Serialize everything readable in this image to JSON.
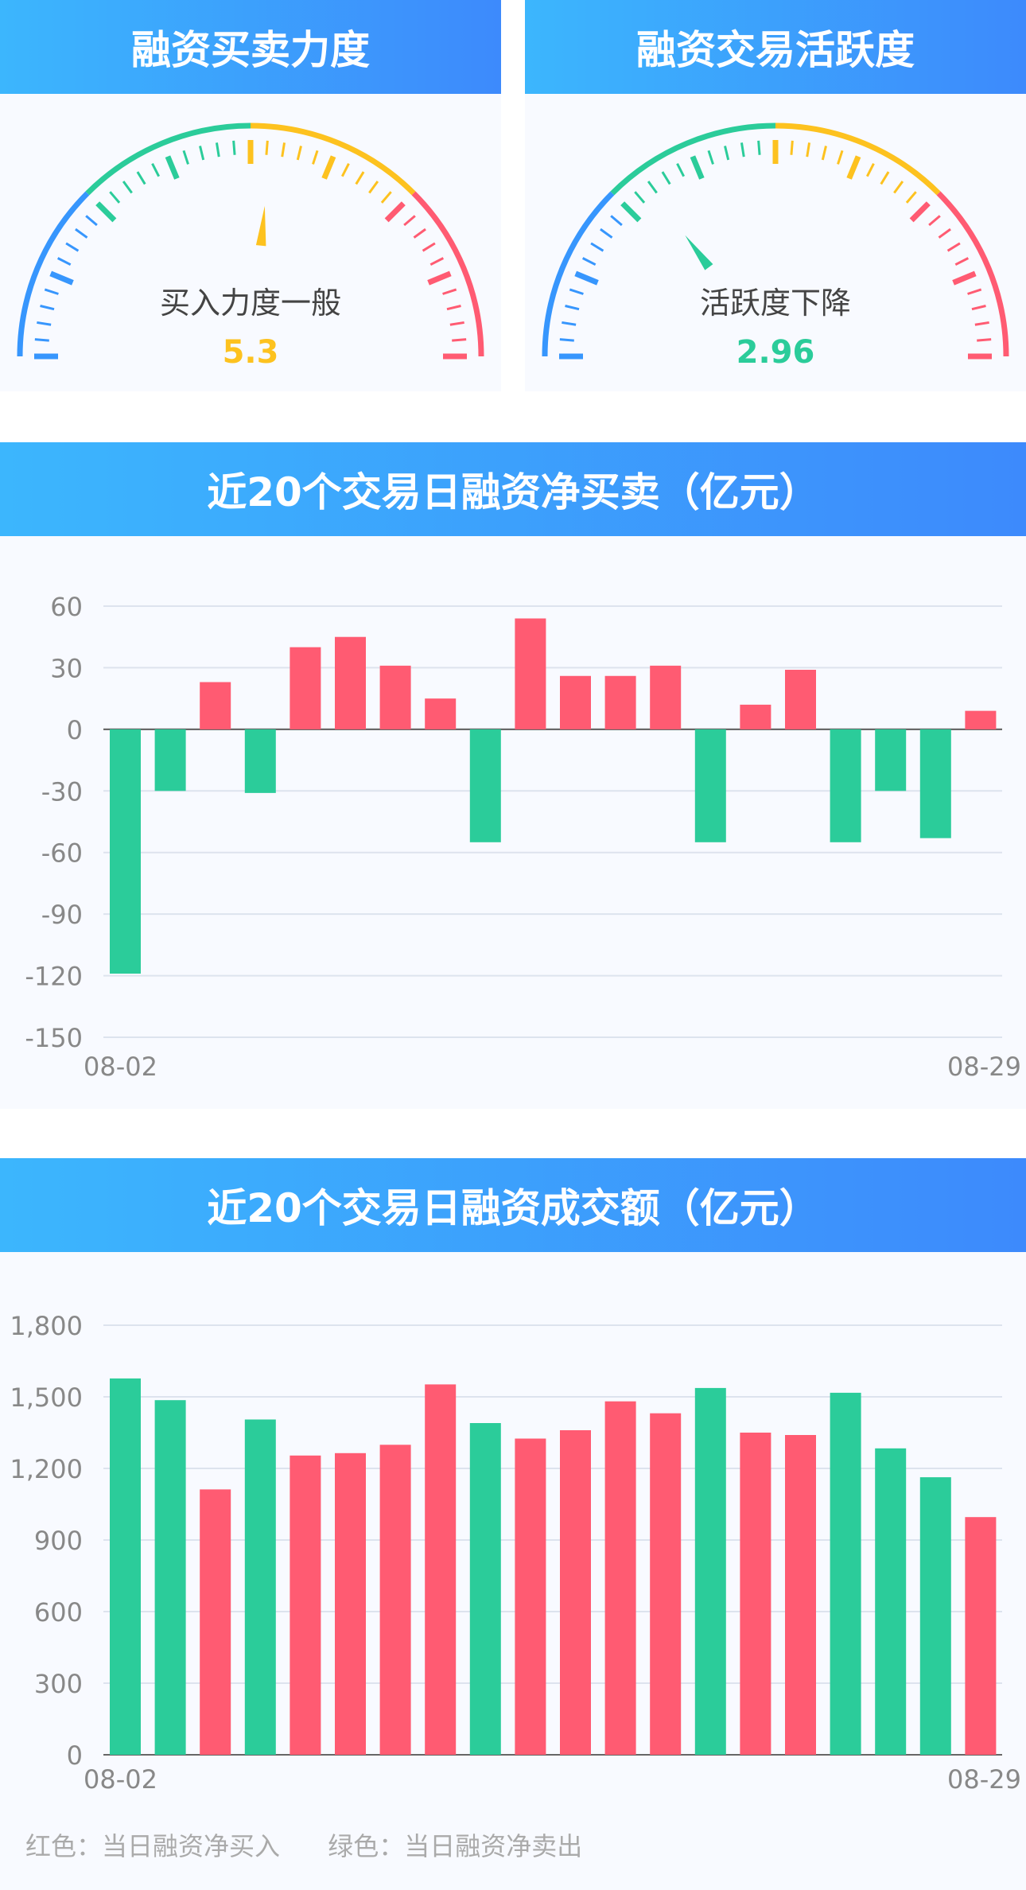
{
  "gauges": [
    {
      "title": "融资买卖力度",
      "label": "买入力度一般",
      "value": "5.3",
      "value_color": "#fdc21f",
      "min": 0,
      "max": 10
    },
    {
      "title": "融资交易活跃度",
      "label": "活跃度下降",
      "value": "2.96",
      "value_color": "#2bcc9a",
      "min": 0,
      "max": 10
    }
  ],
  "colors": {
    "red": "#ff5b72",
    "green": "#2bcc9a",
    "blue": "#3796fd",
    "yellow": "#fdc21f"
  },
  "legend": {
    "red": "红色：当日融资净买入",
    "green": "绿色：当日融资净卖出"
  },
  "chart_data": [
    {
      "type": "bar",
      "title": "近20个交易日融资净买卖（亿元）",
      "x_first": "08-02",
      "x_last": "08-29",
      "yticks": [
        60,
        30,
        0,
        -30,
        -60,
        -90,
        -120,
        -150
      ],
      "ylim": [
        -150,
        60
      ],
      "grid": true,
      "values": [
        -119,
        -30,
        23,
        -31,
        40,
        45,
        31,
        15,
        -55,
        54,
        26,
        26,
        31,
        -55,
        12,
        29,
        -55,
        -30,
        -53,
        9
      ]
    },
    {
      "type": "bar",
      "title": "近20个交易日融资成交额（亿元）",
      "x_first": "08-02",
      "x_last": "08-29",
      "yticks": [
        "1,800",
        "1,500",
        "1,200",
        "900",
        "600",
        "300",
        "0"
      ],
      "ylim": [
        0,
        1800
      ],
      "grid": true,
      "values": [
        1577,
        1486,
        1112,
        1405,
        1254,
        1264,
        1299,
        1552,
        1390,
        1325,
        1360,
        1481,
        1431,
        1537,
        1350,
        1340,
        1517,
        1284,
        1163,
        996
      ],
      "net_sell": [
        true,
        true,
        false,
        true,
        false,
        false,
        false,
        false,
        true,
        false,
        false,
        false,
        false,
        true,
        false,
        false,
        true,
        true,
        true,
        false
      ]
    }
  ]
}
